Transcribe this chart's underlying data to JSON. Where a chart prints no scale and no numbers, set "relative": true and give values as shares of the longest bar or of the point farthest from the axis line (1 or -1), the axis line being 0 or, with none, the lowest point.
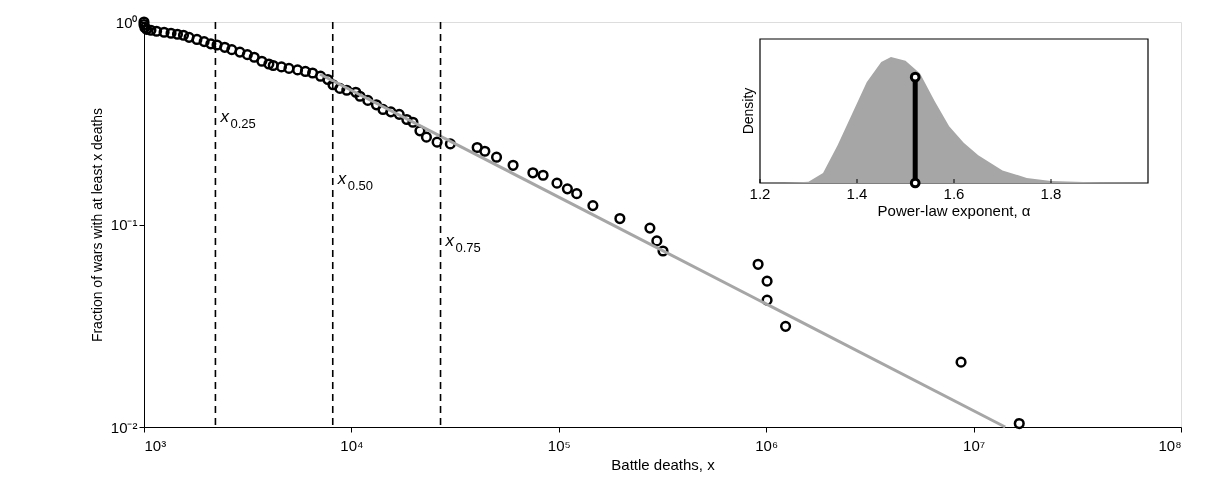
{
  "chart_data": [
    {
      "type": "scatter",
      "xlabel": "Battle deaths, x",
      "ylabel": "Fraction of wars with at least x deaths",
      "log": "xy",
      "marker": "circle",
      "xlim": [
        1000,
        100000000
      ],
      "ylim": [
        0.01,
        1
      ],
      "xticks": [
        {
          "value": 1000,
          "label": "10³"
        },
        {
          "value": 10000,
          "label": "10⁴"
        },
        {
          "value": 100000,
          "label": "10⁵"
        },
        {
          "value": 1000000,
          "label": "10⁶"
        },
        {
          "value": 10000000,
          "label": "10⁷"
        },
        {
          "value": 100000000,
          "label": "10⁸"
        }
      ],
      "yticks": [
        {
          "value": 0.01,
          "label": "10⁻²"
        },
        {
          "value": 0.1,
          "label": "10⁻¹"
        },
        {
          "value": 1,
          "label": "10⁰"
        }
      ],
      "ref_lines": [
        {
          "axis": "x",
          "value": 2210,
          "label": "x$_{0.25}$",
          "line_style": "dashed"
        },
        {
          "axis": "x",
          "value": 8130,
          "label": "x$_{0.50}$",
          "line_style": "dashed"
        },
        {
          "axis": "x",
          "value": 26900,
          "label": "x$_{0.75}$",
          "line_style": "dashed"
        }
      ],
      "series": [
        {
          "color": "#000000",
          "x": [
            1000,
            1000,
            1010,
            1030,
            1080,
            1150,
            1250,
            1350,
            1450,
            1550,
            1650,
            1800,
            1950,
            2100,
            2250,
            2450,
            2650,
            2900,
            3150,
            3400,
            3700,
            4000,
            4200,
            4600,
            5000,
            5500,
            6000,
            6500,
            7100,
            7700,
            8150,
            8800,
            9500,
            10500,
            11000,
            12000,
            13200,
            14200,
            15500,
            17000,
            18500,
            19800,
            21400,
            23000,
            25900,
            30000,
            40400,
            44000,
            50100,
            60200,
            75000,
            84000,
            98000,
            110000,
            122000,
            146000,
            197000,
            275000,
            297000,
            318000,
            914000,
            1010000,
            1010000,
            1240000,
            8700000,
            16600000
          ],
          "values": [
            1.0,
            0.97,
            0.94,
            0.92,
            0.91,
            0.9,
            0.89,
            0.88,
            0.87,
            0.86,
            0.84,
            0.82,
            0.8,
            0.78,
            0.77,
            0.75,
            0.73,
            0.71,
            0.69,
            0.67,
            0.64,
            0.62,
            0.61,
            0.6,
            0.59,
            0.58,
            0.57,
            0.56,
            0.54,
            0.52,
            0.49,
            0.47,
            0.46,
            0.45,
            0.43,
            0.41,
            0.39,
            0.37,
            0.36,
            0.35,
            0.33,
            0.32,
            0.29,
            0.27,
            0.255,
            0.25,
            0.24,
            0.23,
            0.215,
            0.196,
            0.18,
            0.175,
            0.16,
            0.15,
            0.142,
            0.124,
            0.107,
            0.096,
            0.083,
            0.074,
            0.0636,
            0.0525,
            0.0423,
            0.0314,
            0.0209,
            0.0104
          ]
        },
        {
          "type": "line",
          "color": "#a6a6a6",
          "marker": "none",
          "x": [
            7060,
            14200000
          ],
          "values": [
            0.552,
            0.01
          ]
        }
      ]
    },
    {
      "type": "area",
      "xlabel": "Power-law exponent, α",
      "ylabel": "Density",
      "relative": true,
      "xlim": [
        1.2,
        2.0
      ],
      "xticks": [
        1.2,
        1.4,
        1.6,
        1.8
      ],
      "series": [
        {
          "color": "#a6a6a6",
          "x": [
            1.25,
            1.3,
            1.33,
            1.36,
            1.39,
            1.42,
            1.45,
            1.47,
            1.5,
            1.53,
            1.56,
            1.59,
            1.62,
            1.65,
            1.7,
            1.75,
            1.8,
            1.9,
            2.0
          ],
          "values": [
            0,
            0.01,
            0.08,
            0.3,
            0.55,
            0.8,
            0.96,
            1,
            0.97,
            0.87,
            0.65,
            0.45,
            0.32,
            0.22,
            0.1,
            0.04,
            0.015,
            0.003,
            0
          ]
        },
        {
          "type": "line",
          "color": "#000000",
          "marker": "circle",
          "x": [
            1.52,
            1.52
          ],
          "values": [
            0,
            0.84
          ]
        }
      ]
    }
  ]
}
